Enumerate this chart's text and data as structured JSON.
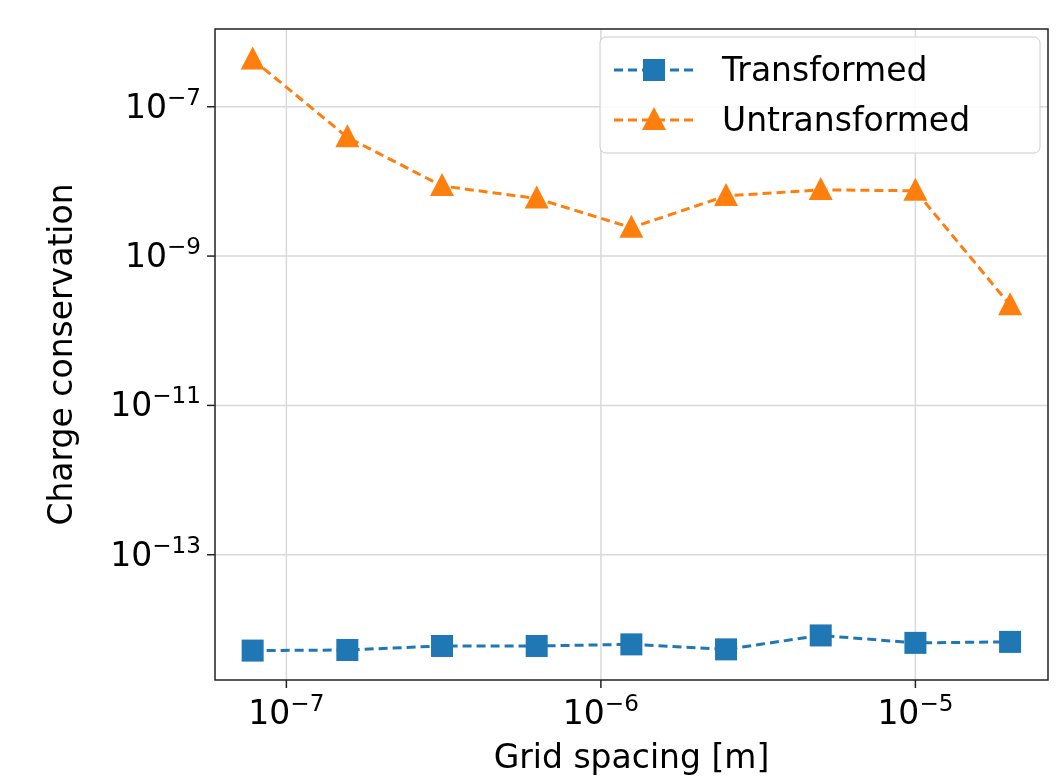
{
  "chart_data": {
    "type": "line",
    "xlabel": "Grid spacing [m]",
    "ylabel": "Charge conservation",
    "log": "xy",
    "grid": true,
    "legend": "top right",
    "line_style": "dashed",
    "x": [
      7.8125e-08,
      1.5625e-07,
      3.125e-07,
      6.25e-07,
      1.25e-06,
      2.5e-06,
      5e-06,
      1e-05,
      2e-05
    ],
    "xlim": [
      5.93e-08,
      2.64e-05
    ],
    "ylim": [
      2.1e-15,
      1.1e-06
    ],
    "xticks": [
      {
        "value": 1e-07,
        "label": "10$^{−7}$"
      },
      {
        "value": 1e-06,
        "label": "10$^{−6}$"
      },
      {
        "value": 1e-05,
        "label": "10$^{−5}$"
      }
    ],
    "yticks": [
      {
        "value": 1e-13,
        "label": "10$^{−13}$"
      },
      {
        "value": 1e-11,
        "label": "10$^{−11}$"
      },
      {
        "value": 1e-09,
        "label": "10$^{−9}$"
      },
      {
        "value": 1e-07,
        "label": "10$^{−7}$"
      }
    ],
    "series": [
      {
        "name": "Transformed",
        "color": "#1f77b4",
        "marker": "square",
        "values": [
          5.2e-15,
          5.3e-15,
          6e-15,
          6e-15,
          6.3e-15,
          5.4e-15,
          8.3e-15,
          6.6e-15,
          6.8e-15
        ]
      },
      {
        "name": "Untransformed",
        "color": "#ff7f0e",
        "marker": "triangle",
        "values": [
          4.3e-07,
          3.9e-08,
          8.7e-09,
          5.9e-09,
          2.4e-09,
          6.4e-09,
          7.7e-09,
          7.5e-09,
          2.2e-10
        ]
      }
    ]
  }
}
